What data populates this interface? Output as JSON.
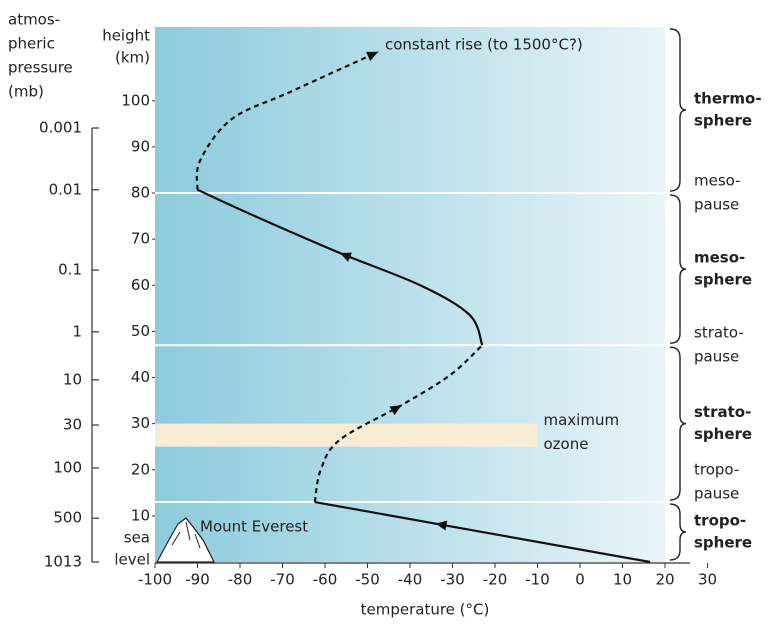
{
  "chart_data": {
    "type": "line",
    "x_label": "temperature (°C)",
    "y_label": [
      "height",
      "(km)"
    ],
    "pressure_label": [
      "atmos-",
      "pheric",
      "pressure",
      "(mb)"
    ],
    "xlim": [
      -100,
      30
    ],
    "xticks": [
      -100,
      -90,
      -80,
      -70,
      -60,
      -50,
      -40,
      -30,
      -20,
      -10,
      0,
      10,
      20,
      30
    ],
    "ylim": [
      0,
      116
    ],
    "yticks": [
      10,
      20,
      30,
      40,
      50,
      60,
      70,
      80,
      90,
      100
    ],
    "pressure_ticks": [
      {
        "value": 0.001,
        "height": 94.1
      },
      {
        "value": 0.01,
        "height": 80.7
      },
      {
        "value": 0.1,
        "height": 63.3
      },
      {
        "value": 1,
        "height": 49.9
      },
      {
        "value": 10,
        "height": 39.5
      },
      {
        "value": 30,
        "height": 29.7
      },
      {
        "value": 100,
        "height": 20.4
      },
      {
        "value": 500,
        "height": 9.5
      },
      {
        "value": 1013,
        "height": 0
      }
    ],
    "segments": [
      {
        "style": "solid",
        "x": [
          16.5,
          -62.4
        ],
        "y": [
          0,
          13
        ]
      },
      {
        "style": "dashed",
        "x": [
          -62.4,
          -61,
          -56.5,
          -42,
          -30.6,
          -23
        ],
        "y": [
          13,
          20,
          26.5,
          34,
          40.5,
          47
        ]
      },
      {
        "style": "solid",
        "x": [
          -23,
          -26,
          -37.6,
          -56.5,
          -76.5,
          -90
        ],
        "y": [
          47,
          53.6,
          60,
          67,
          75,
          80.7
        ]
      },
      {
        "style": "dashed",
        "x": [
          -90,
          -89.4,
          -82,
          -68,
          -47.5
        ],
        "y": [
          80.7,
          87,
          96,
          102,
          110.6
        ]
      }
    ],
    "line_color": "#111111",
    "boundaries": [
      13,
      47,
      80
    ],
    "layers": [
      [
        "tropo-",
        "sphere"
      ],
      [
        "strato-",
        "sphere"
      ],
      [
        "meso-",
        "sphere"
      ],
      [
        "thermo-",
        "sphere"
      ]
    ],
    "transitions": [
      [
        "tropo-",
        "pause"
      ],
      [
        "strato-",
        "pause"
      ],
      [
        "meso-",
        "pause"
      ]
    ],
    "ozone": {
      "lines": [
        "maximum",
        "ozone"
      ],
      "y": [
        25,
        30
      ],
      "x_end": -10,
      "color": "#f8ecd6"
    },
    "annotations": {
      "constant_rise": "constant rise (to 1500°C?)",
      "everest": "Mount Everest",
      "sea_level": [
        "sea",
        "level"
      ]
    }
  }
}
